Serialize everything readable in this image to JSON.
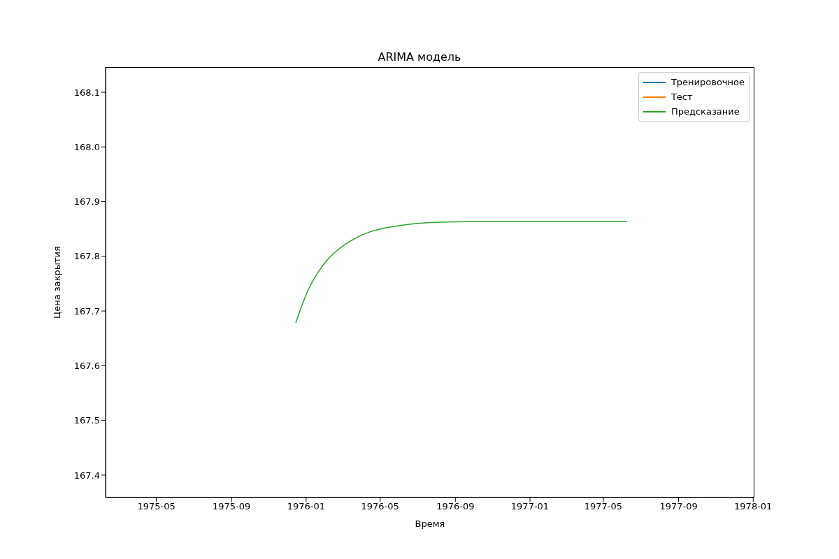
{
  "chart_data": {
    "type": "line",
    "title": "ARIMA модель",
    "xlabel": "Время",
    "ylabel": "Цена закрытия",
    "xlim": [
      "1975-02-07",
      "1978-01-03"
    ],
    "xticks": [
      "1975-05",
      "1975-09",
      "1976-01",
      "1976-05",
      "1976-09",
      "1977-01",
      "1977-05",
      "1977-09",
      "1978-01"
    ],
    "ylim": [
      167.359,
      168.146
    ],
    "yticks": [
      167.4,
      167.5,
      167.6,
      167.7,
      167.8,
      167.9,
      {
        "value": 168,
        "label": "168.0"
      },
      168.1
    ],
    "legend": "top right",
    "marker": "none",
    "line_style": "solid",
    "series": [
      {
        "name": "Тренировочное",
        "color": "#1f77b4"
      },
      {
        "name": "Тест",
        "color": "#ff7f0e"
      },
      {
        "name": "Предсказание",
        "color": "#2ca02c",
        "x": [
          "1975-12-15",
          "1975-12-25",
          "1976-01-05",
          "1976-01-20",
          "1976-02-05",
          "1976-02-20",
          "1976-03-05",
          "1976-03-25",
          "1976-04-15",
          "1976-05-05",
          "1976-06-01",
          "1976-07-01",
          "1976-08-01",
          "1976-09-01",
          "1976-11-01",
          "1977-01-01",
          "1977-03-01",
          "1977-06-09"
        ],
        "values": [
          167.678,
          167.71,
          167.74,
          167.77,
          167.794,
          167.81,
          167.822,
          167.835,
          167.845,
          167.851,
          167.856,
          167.86,
          167.862,
          167.863,
          167.864,
          167.864,
          167.864,
          167.864
        ]
      }
    ]
  }
}
